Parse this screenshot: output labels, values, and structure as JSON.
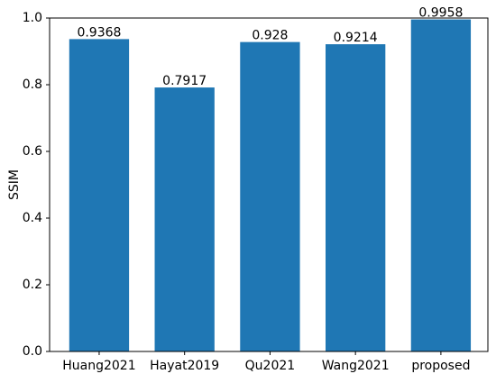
{
  "chart_data": {
    "type": "bar",
    "ylabel": "SSIM",
    "categories": [
      "Huang2021",
      "Hayat2019",
      "Qu2021",
      "Wang2021",
      "proposed"
    ],
    "values": [
      0.9368,
      0.7917,
      0.928,
      0.9214,
      0.9958
    ],
    "color": "#1f77b4",
    "ylim": [
      0,
      1
    ],
    "yticks": [
      {
        "value": 0,
        "label": "0.0"
      },
      0.2,
      0.4,
      0.6,
      0.8,
      {
        "value": 1,
        "label": "1.0"
      }
    ],
    "grid": false
  }
}
